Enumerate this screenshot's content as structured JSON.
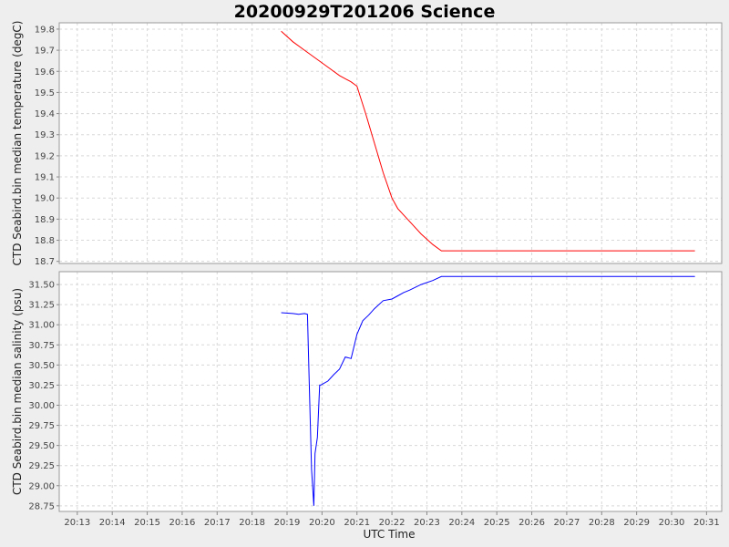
{
  "chart_data": {
    "type": "line",
    "title": "20200929T201206 Science",
    "xlabel": "UTC Time",
    "x_ticks": [
      "20:13",
      "20:14",
      "20:15",
      "20:16",
      "20:17",
      "20:18",
      "20:19",
      "20:20",
      "20:21",
      "20:22",
      "20:23",
      "20:24",
      "20:25",
      "20:26",
      "20:27",
      "20:28",
      "20:29",
      "20:30",
      "20:31"
    ],
    "grid": true,
    "panels": [
      {
        "ylabel": "CTD Seabird.bin median temperature (degC)",
        "ylim": [
          18.69,
          19.83
        ],
        "y_ticks": [
          "18.7",
          "18.8",
          "18.9",
          "19.0",
          "19.1",
          "19.2",
          "19.3",
          "19.4",
          "19.5",
          "19.6",
          "19.7",
          "19.8"
        ],
        "color": "#ff0000",
        "x": [
          "20:18:50",
          "20:19:10",
          "20:19:30",
          "20:19:50",
          "20:20:10",
          "20:20:30",
          "20:20:50",
          "20:21:00",
          "20:21:15",
          "20:21:30",
          "20:21:45",
          "20:22:00",
          "20:22:10",
          "20:22:30",
          "20:22:50",
          "20:23:10",
          "20:23:25",
          "20:30:40"
        ],
        "values": [
          19.79,
          19.74,
          19.7,
          19.66,
          19.62,
          19.58,
          19.55,
          19.53,
          19.4,
          19.26,
          19.12,
          19.0,
          18.95,
          18.89,
          18.83,
          18.78,
          18.75,
          18.75
        ]
      },
      {
        "ylabel": "CTD Seabird.bin median salinity (psu)",
        "ylim": [
          28.68,
          31.66
        ],
        "y_ticks": [
          "28.75",
          "29.00",
          "29.25",
          "29.50",
          "29.75",
          "30.00",
          "30.25",
          "30.50",
          "30.75",
          "31.00",
          "31.25",
          "31.50"
        ],
        "color": "#0000ff",
        "x": [
          "20:18:50",
          "20:19:10",
          "20:19:20",
          "20:19:30",
          "20:19:35",
          "20:19:38",
          "20:19:42",
          "20:19:46",
          "20:19:48",
          "20:19:52",
          "20:19:56",
          "20:19:58",
          "20:20:00",
          "20:20:10",
          "20:20:20",
          "20:20:30",
          "20:20:40",
          "20:20:50",
          "20:21:00",
          "20:21:10",
          "20:21:20",
          "20:21:30",
          "20:21:45",
          "20:22:00",
          "20:22:10",
          "20:22:20",
          "20:22:30",
          "20:22:50",
          "20:23:10",
          "20:23:25",
          "20:30:40"
        ],
        "values": [
          31.15,
          31.14,
          31.13,
          31.14,
          31.13,
          30.3,
          29.2,
          28.75,
          29.4,
          29.6,
          30.25,
          30.25,
          30.26,
          30.3,
          30.38,
          30.45,
          30.6,
          30.58,
          30.88,
          31.05,
          31.12,
          31.2,
          31.3,
          31.32,
          31.36,
          31.4,
          31.43,
          31.5,
          31.55,
          31.6,
          31.6
        ]
      }
    ]
  }
}
